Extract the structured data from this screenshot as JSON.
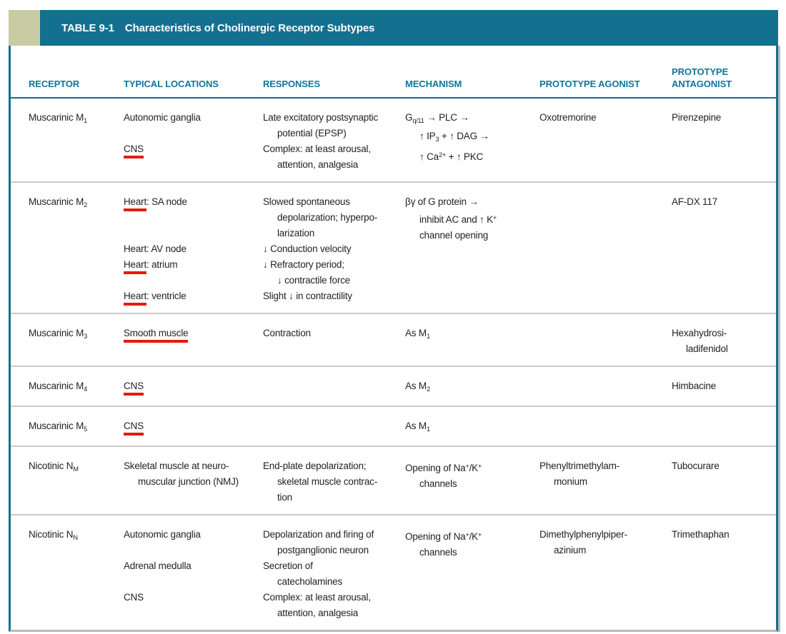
{
  "colors": {
    "header_bar": "#14708F",
    "header_text": "#0F769A",
    "corner_square": "#C9CCA3",
    "body_text": "#231F20",
    "row_divider": "#C9C9C9",
    "red_underline": "#E8190F",
    "card_bottom": "#B9B9BB"
  },
  "table": {
    "title_label": "TABLE 9-1",
    "title_text": "Characteristics of Cholinergic Receptor Subtypes",
    "columns": [
      {
        "id": "receptor",
        "lines": [
          "RECEPTOR"
        ]
      },
      {
        "id": "locations",
        "lines": [
          "TYPICAL LOCATIONS"
        ]
      },
      {
        "id": "responses",
        "lines": [
          "RESPONSES"
        ]
      },
      {
        "id": "mechanism",
        "lines": [
          "MECHANISM"
        ]
      },
      {
        "id": "agonist",
        "lines": [
          "PROTOTYPE AGONIST"
        ]
      },
      {
        "id": "antagonist",
        "lines": [
          "PROTOTYPE",
          "ANTAGONIST"
        ]
      }
    ],
    "rows": [
      {
        "receptor": [
          "Muscarinic M~1~"
        ],
        "locations": [
          "Autonomic ganglia",
          "",
          "[CNS]",
          ""
        ],
        "responses": [
          "Late excitatory postsynaptic",
          ">potential (EPSP)",
          "Complex: at least arousal,",
          ">attention, analgesia"
        ],
        "mechanism": [
          "G~q/11~ → PLC →",
          ">↑ IP~3~ + ↑ DAG →",
          ">↑ Ca^2+^ + ↑ PKC"
        ],
        "agonist": [
          "Oxotremorine"
        ],
        "antagonist": [
          "Pirenzepine"
        ]
      },
      {
        "receptor": [
          "Muscarinic M~2~"
        ],
        "locations": [
          "[Heart]: SA node",
          "",
          "",
          "Heart: AV node",
          "[Heart]: atrium",
          "",
          "[Heart]: ventricle"
        ],
        "responses": [
          "Slowed spontaneous",
          ">depolarization; hyperpo-",
          ">larization",
          "↓ Conduction velocity",
          "↓ Refractory period;",
          ">↓ contractile force",
          "Slight ↓ in contractility"
        ],
        "mechanism": [
          "βγ of G protein →",
          ">inhibit AC and ↑ K^+^",
          ">channel opening"
        ],
        "agonist": [],
        "antagonist": [
          "AF-DX 117"
        ]
      },
      {
        "receptor": [
          "Muscarinic M~3~"
        ],
        "locations": [
          "[Smooth muscle]"
        ],
        "responses": [
          "Contraction"
        ],
        "mechanism": [
          "As M~1~"
        ],
        "agonist": [],
        "antagonist": [
          "Hexahydrosi-",
          ">ladifenidol"
        ]
      },
      {
        "receptor": [
          "Muscarinic M~4~"
        ],
        "locations": [
          "[CNS]"
        ],
        "responses": [],
        "mechanism": [
          "As M~2~"
        ],
        "agonist": [],
        "antagonist": [
          "Himbacine"
        ]
      },
      {
        "receptor": [
          "Muscarinic M~5~"
        ],
        "locations": [
          "[CNS]"
        ],
        "responses": [],
        "mechanism": [
          "As M~1~"
        ],
        "agonist": [],
        "antagonist": []
      },
      {
        "receptor": [
          "Nicotinic N~M~"
        ],
        "locations": [
          "Skeletal muscle at neuro-",
          ">muscular junction (NMJ)"
        ],
        "responses": [
          "End-plate depolarization;",
          ">skeletal muscle contrac-",
          ">tion"
        ],
        "mechanism": [
          "Opening of Na^+^/K^+^",
          ">channels"
        ],
        "agonist": [
          "Phenyltrimethylam-",
          ">monium"
        ],
        "antagonist": [
          "Tubocurare"
        ]
      },
      {
        "receptor": [
          "Nicotinic N~N~"
        ],
        "locations": [
          "Autonomic ganglia",
          "",
          "Adrenal medulla",
          "",
          "CNS",
          ""
        ],
        "responses": [
          "Depolarization and firing of",
          ">postganglionic neuron",
          "Secretion of",
          ">catecholamines",
          "Complex: at least arousal,",
          ">attention, analgesia"
        ],
        "mechanism": [
          "Opening of Na^+^/K^+^",
          ">channels"
        ],
        "agonist": [
          "Dimethylphenylpiper-",
          ">azinium"
        ],
        "antagonist": [
          "Trimethaphan"
        ]
      }
    ]
  }
}
